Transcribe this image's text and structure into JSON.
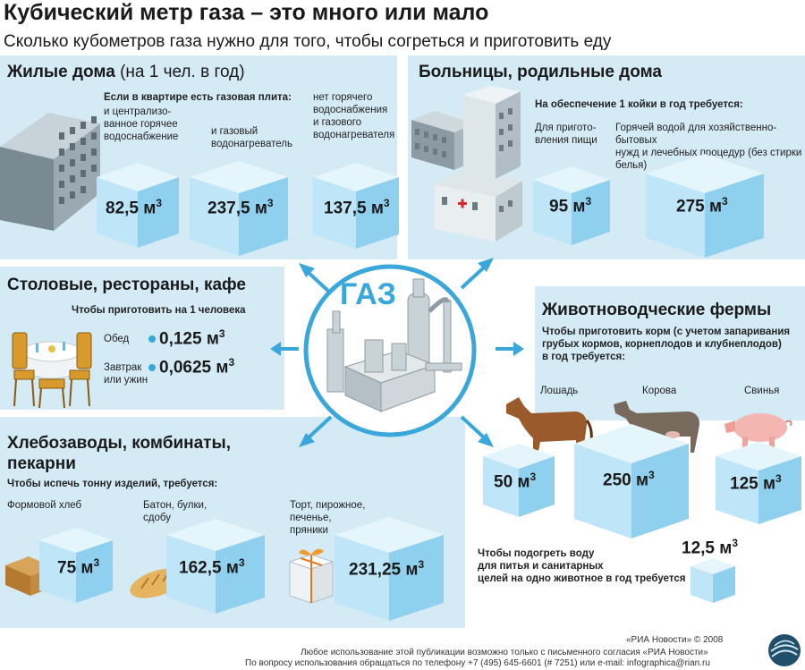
{
  "title": "Кубический метр газа – это много или мало",
  "subtitle": "Сколько кубометров газа нужно для того, чтобы согреться и приготовить еду",
  "center_label": "ГАЗ",
  "residential": {
    "title": "Жилые дома",
    "title_note": "(на 1 чел. в год)",
    "lead": "Если в квартире есть газовая плита:",
    "col1": "и централизо-\nванное горячее\nводоснабжение",
    "col2": "и газовый\nводонагреватель",
    "col3": "нет горячего\nводоснабжения\nи газового\nводонагревателя",
    "v1": "82,5 м",
    "v2": "237,5 м",
    "v3": "137,5 м"
  },
  "hospitals": {
    "title": "Больницы, родильные дома",
    "lead": "На обеспечение 1 койки в год требуется:",
    "col1": "Для пригото-\nвления пищи",
    "col2": "Горячей водой для хозяйственно-бытовых\nнужд и лечебных процедур (без стирки\nбелья)",
    "v1": "95 м",
    "v2": "275 м"
  },
  "canteens": {
    "title": "Столовые, рестораны, кафе",
    "lead": "Чтобы приготовить на 1 человека",
    "row1_label": "Обед",
    "row1_value": "0,125 м",
    "row2_label": "Завтрак\nили ужин",
    "row2_value": "0,0625 м"
  },
  "bakeries": {
    "title": "Хлебозаводы, комбинаты,\nпекарни",
    "lead": "Чтобы испечь тонну изделий, требуется:",
    "col1": "Формовой хлеб",
    "col2": "Батон, булки,\nсдобу",
    "col3": "Торт, пирожное,\nпеченье,\nпряники",
    "v1": "75 м",
    "v2": "162,5 м",
    "v3": "231,25 м"
  },
  "farms": {
    "title": "Животноводческие фермы",
    "lead": "Чтобы приготовить корм (с учетом запаривания\nгрубых кормов, корнеплодов и клубнеплодов)\nв год требуется:",
    "horse": "Лошадь",
    "cow": "Корова",
    "pig": "Свинья",
    "v1": "50 м",
    "v2": "250 м",
    "v3": "125 м",
    "water_note": "Чтобы подогреть воду\nдля питья и санитарных\nцелей на одно животное в год требуется",
    "water_value": "12,5 м"
  },
  "unit_exp": "3",
  "footer": {
    "copyright": "«РИА Новости» © 2008",
    "line1": "Любое использование этой публикации возможно только с письменного согласия «РИА Новости»",
    "line2": "По вопросу использования обращаться по телефону +7 (495) 645-6601 (# 7251) или e-mail: infographica@rian.ru"
  },
  "colors": {
    "panel": "#d4ebf6",
    "cube_front": "#bfe6f8",
    "cube_top": "#e4f5fc",
    "cube_side": "#8fd0ee",
    "accent": "#39a7dc"
  }
}
